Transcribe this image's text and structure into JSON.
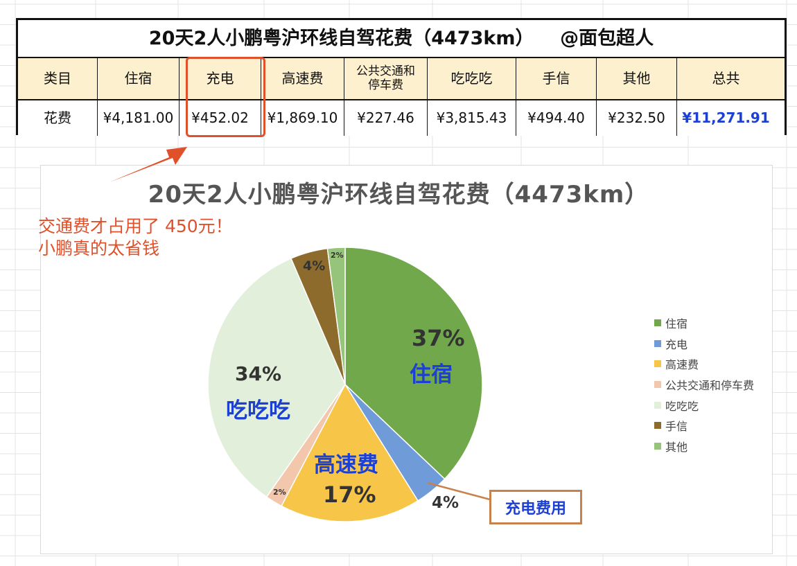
{
  "table": {
    "title": "20天2人小鹏粤沪环线自驾花费（4473km）    @面包超人",
    "row_header": "类目",
    "row_label": "花费",
    "categories": [
      "住宿",
      "充电",
      "高速费",
      "公共交通和停车费",
      "吃吃吃",
      "手信",
      "其他",
      "总共"
    ],
    "category_lines": {
      "公共交通和停车费": [
        "公共交通和",
        "停车费"
      ]
    },
    "values": [
      "¥4,181.00",
      "¥452.02",
      "¥1,869.10",
      "¥227.46",
      "¥3,815.43",
      "¥494.40",
      "¥232.50",
      "¥11,271.91"
    ]
  },
  "annotation": {
    "line1": "交通费才占用了 450元！",
    "line2": "小鹏真的太省钱",
    "callout": "充电费用"
  },
  "colors": {
    "住宿": "#70a84b",
    "充电": "#6f9bd8",
    "高速费": "#f7c548",
    "公共交通和停车费": "#f2c7ac",
    "吃吃吃": "#e2efda",
    "手信": "#8c6b2c",
    "其他": "#96c47a",
    "highlight": "#e0502a",
    "label_blue": "#1c3fd4"
  },
  "chart_data": {
    "type": "pie",
    "title": "20天2人小鹏粤沪环线自驾花费（4473km）",
    "categories": [
      "住宿",
      "充电",
      "高速费",
      "公共交通和停车费",
      "吃吃吃",
      "手信",
      "其他"
    ],
    "values": [
      4181.0,
      452.02,
      1869.1,
      227.46,
      3815.43,
      494.4,
      232.5
    ],
    "percent_labels": [
      "37%",
      "4%",
      "17%",
      "2%",
      "34%",
      "4%",
      "2%"
    ],
    "slice_name_labels": {
      "住宿": "住宿",
      "高速费": "高速费",
      "吃吃吃": "吃吃吃"
    },
    "legend_position": "right"
  }
}
